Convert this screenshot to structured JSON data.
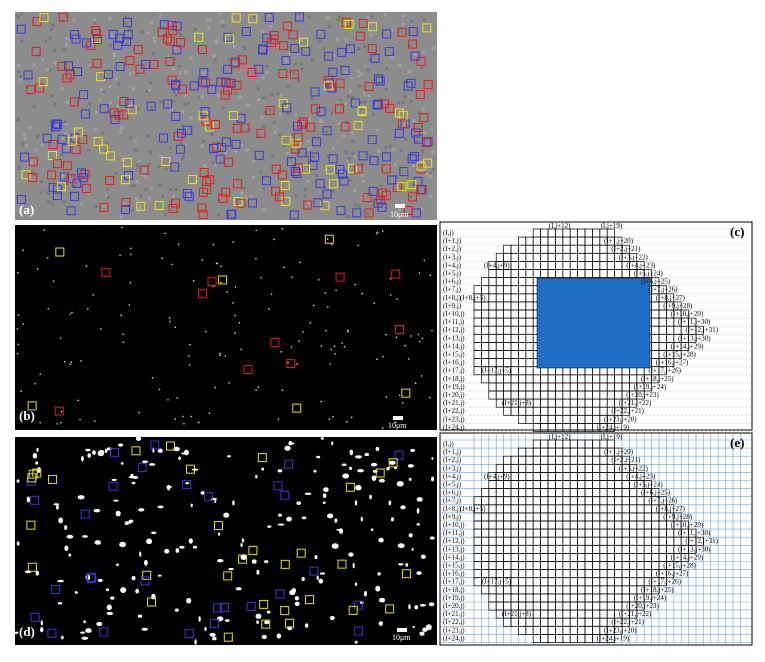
{
  "panels": {
    "a": {
      "label": "(a)",
      "scale": "10μm"
    },
    "b": {
      "label": "(b)",
      "scale": "10μm"
    },
    "d": {
      "label": "(d)",
      "scale": "10μm"
    },
    "c": {
      "label": "(c)",
      "left_labels": [
        "(I,j)",
        "(I+1,j)",
        "(I+2,j)",
        "(I+3,j)",
        "(I+4,j)",
        "(I+5,j)",
        "(I+6,j)",
        "(I+7,j)",
        "(I+8,j)",
        "(I+9,j)",
        "(I+10,j)",
        "(I+11,j)",
        "(I+12,j)",
        "(I+13,j)",
        "(I+14,j)",
        "(I+15,j)",
        "(I+16,j)",
        "(I+17,j)",
        "(I+18,j)",
        "(I+19,j)",
        "(I+20,j)",
        "(I+21,j)",
        "(I+22,j)",
        "(I+23,j)",
        "(I+24,j)"
      ],
      "top_labels": [
        "(I,j+12)",
        "(I,j+19)"
      ],
      "right_labels": [
        "(I+1,j+20)",
        "(I+2,j+21)",
        "(I+3,j+22)",
        "(I+4,j+23)",
        "(I+5,j+24)",
        "(I+6,j+25)",
        "(I+7,j+26)",
        "(I+8,j+27)",
        "(I+9,j+28)",
        "(I+10,j+29)",
        "(I+11,j+30)",
        "(I+12,j+31)",
        "(I+13,j+30)",
        "(I+14,j+29)",
        "(I+15,j+28)",
        "(I+16,j+27)",
        "(I+17,j+26)",
        "(I+18,j+25)",
        "(I+19,j+24)",
        "(I+20,j+23)",
        "(I+21,j+22)",
        "(I+22,j+21)",
        "(I+23,j+20)",
        "(I+24,j+19)"
      ],
      "interior_labels": [
        "(I+4,j+9)",
        "(I+8,j+5)",
        "(I+17,j+5)",
        "(I+21,j+8)"
      ]
    },
    "e": {
      "label": "(e)",
      "left_labels": [
        "(I,j)",
        "(I+1,j)",
        "(I+2,j)",
        "(I+3,j)",
        "(I+4,j)",
        "(I+5,j)",
        "(I+6,j)",
        "(I+7,j)",
        "(I+8,j)",
        "(I+9,j)",
        "(I+10,j)",
        "(I+11,j)",
        "(I+12,j)",
        "(I+13,j)",
        "(I+14,j)",
        "(I+15,j)",
        "(I+16,j)",
        "(I+17,j)",
        "(I+18,j)",
        "(I+19,j)",
        "(I+20,j)",
        "(I+21,j)",
        "(I+22,j)",
        "(I+23,j)",
        "(I+24,j)"
      ],
      "top_labels": [
        "(I,j+12)",
        "(I,j+19)"
      ],
      "right_labels": [
        "(I+1,j+20)",
        "(I+2,j+21)",
        "(I+3,j+22)",
        "(I+4,j+23)",
        "(I+5,j+24)",
        "(I+6,j+25)",
        "(I+7,j+26)",
        "(I+8,j+27)",
        "(I+9,j+28)",
        "(I+10,j+29)",
        "(I+11,j+30)",
        "(I+12,j+31)",
        "(I+13,j+30)",
        "(I+14,j+29)",
        "(I+15,j+28)",
        "(I+16,j+27)",
        "(I+17,j+26)",
        "(I+18,j+25)",
        "(I+19,j+24)",
        "(I+20,j+23)",
        "(I+21,j+22)",
        "(I+22,j+21)",
        "(I+23,j+20)",
        "(I+24,j+19)"
      ],
      "interior_labels": [
        "(I+4,j+9)",
        "(I+8,j+5)",
        "(I+17,j+5)",
        "(I+21,j+8)"
      ]
    }
  }
}
